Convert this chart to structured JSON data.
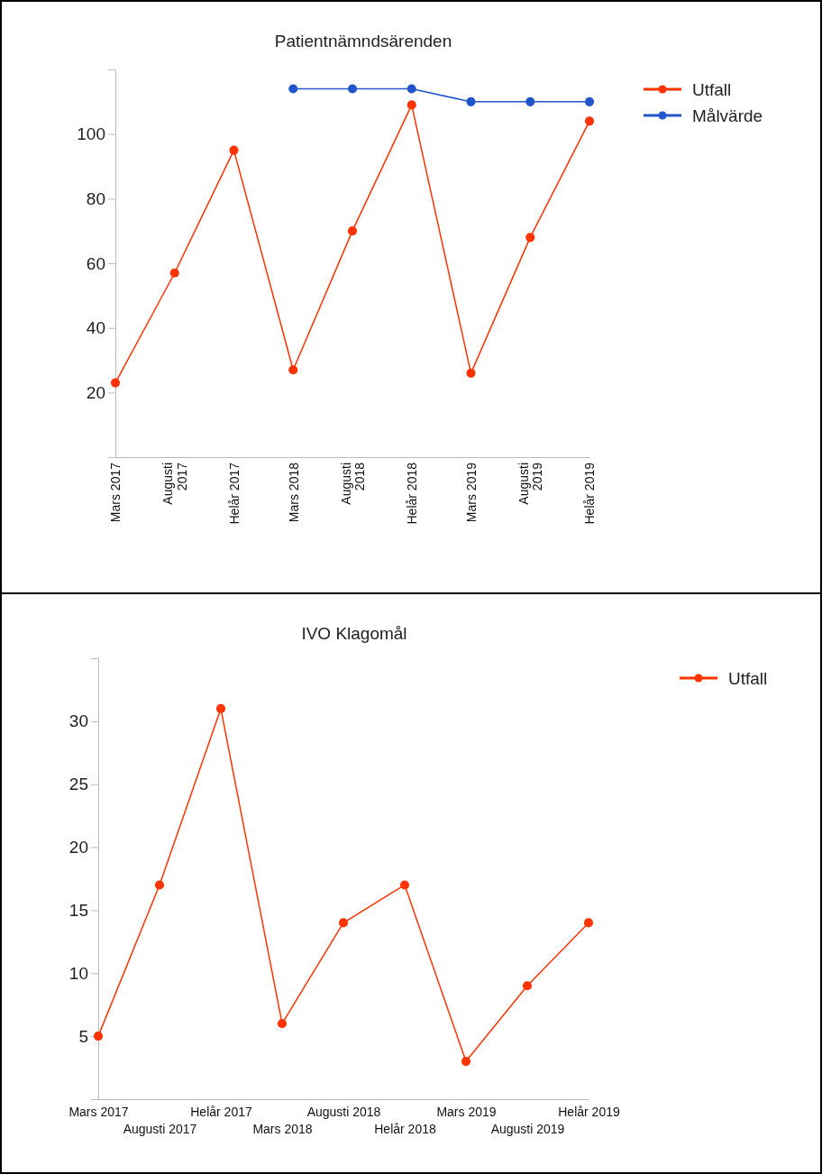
{
  "chart_data": [
    {
      "type": "line",
      "title": "Patientnämndsärenden",
      "categories": [
        "Mars 2017",
        "Augusti 2017",
        "Helår 2017",
        "Mars 2018",
        "Augusti 2018",
        "Helår 2018",
        "Mars 2019",
        "Augusti 2019",
        "Helår 2019"
      ],
      "series": [
        {
          "name": "Utfall",
          "color": "#ff3300",
          "values": [
            23,
            57,
            95,
            27,
            70,
            109,
            26,
            68,
            104
          ]
        },
        {
          "name": "Målvärde",
          "color": "#2255cc",
          "values": [
            null,
            null,
            null,
            114,
            114,
            114,
            110,
            110,
            110
          ]
        }
      ],
      "ylim": [
        0,
        120
      ],
      "yticks": [
        20,
        40,
        60,
        80,
        100
      ],
      "grid": false,
      "legend": "top right",
      "marker": "circle",
      "line_style": "solid"
    },
    {
      "type": "line",
      "title": "IVO Klagomål",
      "categories": [
        "Mars 2017",
        "Augusti 2017",
        "Helår 2017",
        "Mars 2018",
        "Augusti 2018",
        "Helår 2018",
        "Mars 2019",
        "Augusti 2019",
        "Helår 2019"
      ],
      "series": [
        {
          "name": "Utfall",
          "color": "#ff3300",
          "values": [
            5,
            17,
            31,
            6,
            14,
            17,
            3,
            9,
            14
          ]
        }
      ],
      "ylim": [
        0,
        35
      ],
      "yticks": [
        5,
        10,
        15,
        20,
        25,
        30
      ],
      "grid": false,
      "legend": "top right",
      "marker": "circle",
      "line_style": "solid"
    }
  ]
}
